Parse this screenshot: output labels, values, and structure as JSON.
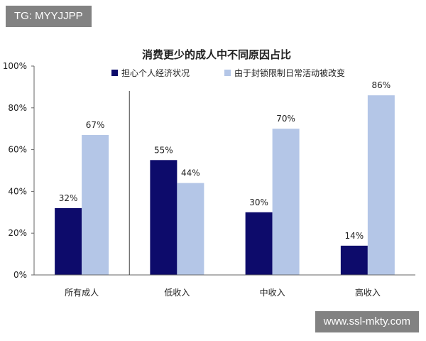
{
  "watermarks": {
    "top_left": "TG: MYYJJPP",
    "bottom_right": "www.ssl-mkty.com"
  },
  "colors": {
    "series_dark": "#0d0b6b",
    "series_light": "#b4c6e7",
    "axis": "#666666",
    "text": "#222222"
  },
  "chart_data": {
    "type": "bar",
    "title": "消费更少的成人中不同原因占比",
    "xlabel": "",
    "ylabel": "",
    "categories": [
      "所有成人",
      "低收入",
      "中收入",
      "高收入"
    ],
    "series": [
      {
        "name": "担心个人经济状况",
        "values": [
          32,
          55,
          30,
          14
        ]
      },
      {
        "name": "由于封锁限制日常活动被改变",
        "values": [
          67,
          44,
          70,
          86
        ]
      }
    ],
    "ylim": [
      0,
      100
    ],
    "yticks": [
      0,
      20,
      40,
      60,
      80,
      100
    ],
    "ytick_labels": [
      "0%",
      "20%",
      "40%",
      "60%",
      "80%",
      "100%"
    ],
    "value_suffix": "%",
    "grid": false,
    "legend_position": "top",
    "separator_after_category": 0
  }
}
